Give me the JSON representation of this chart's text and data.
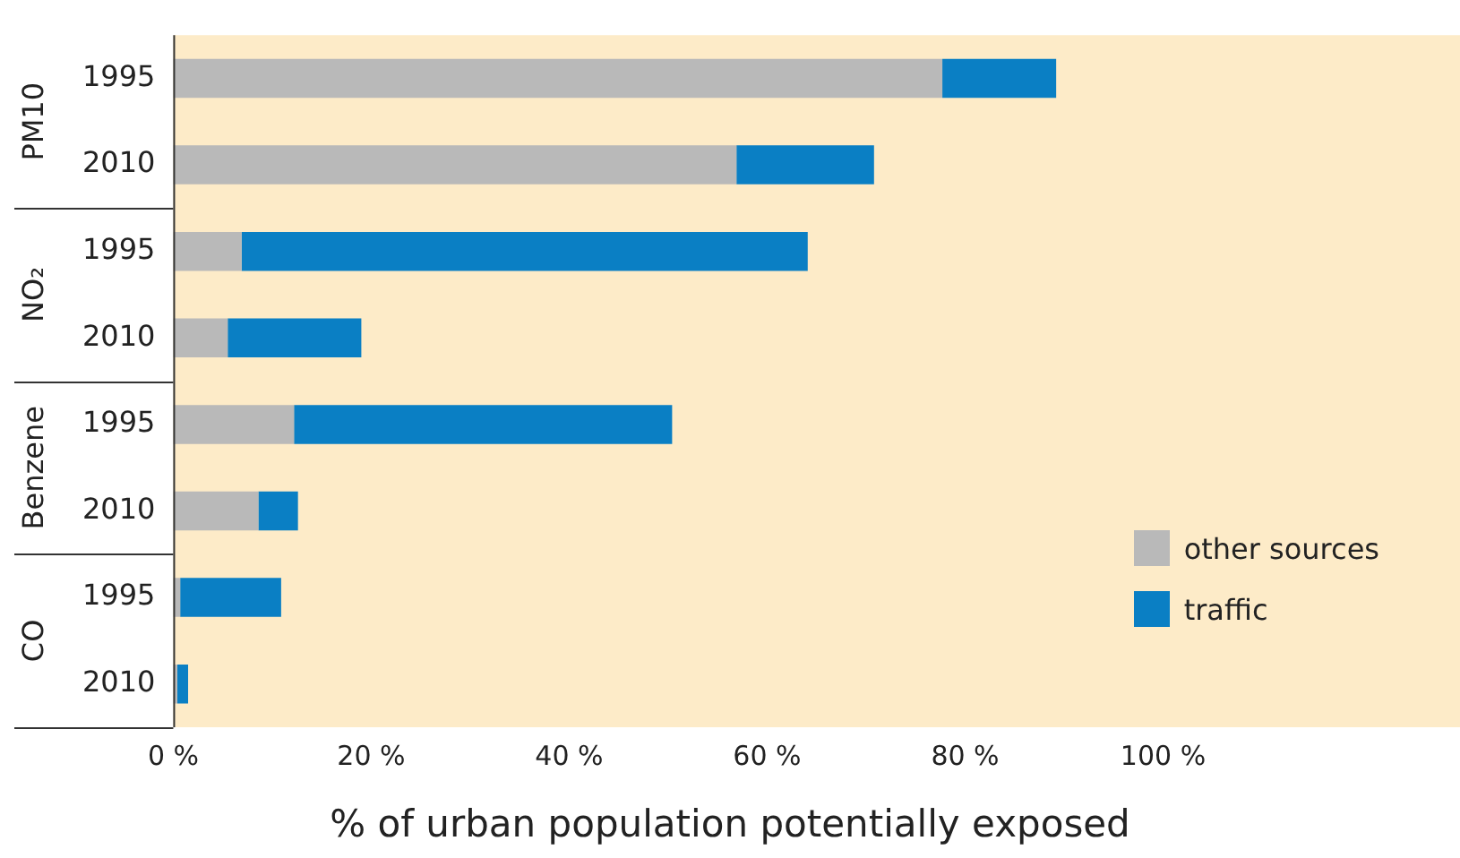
{
  "chart_data": {
    "type": "bar",
    "orientation": "horizontal",
    "stacked": true,
    "xlabel": "% of urban population potentially exposed",
    "categories": [
      "1995",
      "2010",
      "1995",
      "2010",
      "1995",
      "2010",
      "1995",
      "2010"
    ],
    "annotations": [
      "PM10",
      "NO₂",
      "Benzene",
      "CO"
    ],
    "series": [
      {
        "name": "other sources",
        "color": "#b9b9b9",
        "values": [
          77.7,
          56.9,
          6.9,
          5.5,
          12.2,
          8.6,
          0.7,
          0.4
        ]
      },
      {
        "name": "traffic",
        "color": "#0a7fc4",
        "values": [
          11.5,
          13.9,
          57.2,
          13.5,
          38.2,
          4.0,
          10.2,
          1.1
        ]
      }
    ],
    "xlim": [
      0,
      130
    ],
    "xticks": [
      {
        "value": 0,
        "label": "0 %"
      },
      {
        "value": 20,
        "label": "20 %"
      },
      {
        "value": 40,
        "label": "40 %"
      },
      {
        "value": 60,
        "label": "60 %"
      },
      {
        "value": 80,
        "label": "80 %"
      },
      {
        "value": 100,
        "label": "100 %"
      }
    ],
    "grid": false,
    "legend": "bottom right"
  }
}
